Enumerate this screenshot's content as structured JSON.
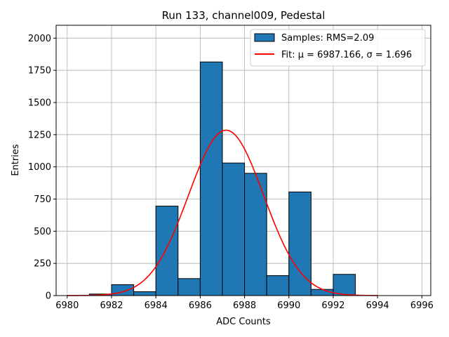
{
  "chart_data": {
    "type": "bar",
    "title": "Run 133, channel009, Pedestal",
    "xlabel": "ADC Counts",
    "ylabel": "Entries",
    "xlim": [
      6979.5,
      6996.4
    ],
    "ylim": [
      0,
      2100
    ],
    "xticks": [
      6980,
      6982,
      6984,
      6986,
      6988,
      6990,
      6992,
      6994,
      6996
    ],
    "yticks": [
      0,
      250,
      500,
      750,
      1000,
      1250,
      1500,
      1750,
      2000
    ],
    "grid": true,
    "legend_position": "top-right",
    "bins": [
      {
        "x0": 6980,
        "x1": 6981,
        "count": 0
      },
      {
        "x0": 6981,
        "x1": 6982,
        "count": 12
      },
      {
        "x0": 6982,
        "x1": 6983,
        "count": 85
      },
      {
        "x0": 6983,
        "x1": 6984,
        "count": 30
      },
      {
        "x0": 6984,
        "x1": 6985,
        "count": 695
      },
      {
        "x0": 6985,
        "x1": 6986,
        "count": 132
      },
      {
        "x0": 6986,
        "x1": 6987,
        "count": 1815
      },
      {
        "x0": 6987,
        "x1": 6988,
        "count": 1030
      },
      {
        "x0": 6988,
        "x1": 6989,
        "count": 950
      },
      {
        "x0": 6989,
        "x1": 6990,
        "count": 155
      },
      {
        "x0": 6990,
        "x1": 6991,
        "count": 805
      },
      {
        "x0": 6991,
        "x1": 6992,
        "count": 48
      },
      {
        "x0": 6992,
        "x1": 6993,
        "count": 165
      },
      {
        "x0": 6993,
        "x1": 6994,
        "count": 0
      },
      {
        "x0": 6994,
        "x1": 6995,
        "count": 0
      },
      {
        "x0": 6995,
        "x1": 6996,
        "count": 0
      }
    ],
    "fit": {
      "mu": 6987.166,
      "sigma": 1.696,
      "amplitude": 1285,
      "x_range": [
        6980,
        6994
      ]
    },
    "series": [
      {
        "name": "Samples: RMS=2.09",
        "kind": "histogram",
        "color": "#1f77b4"
      },
      {
        "name": "Fit: μ = 6987.166, σ = 1.696",
        "kind": "line",
        "color": "#ff0000"
      }
    ]
  }
}
